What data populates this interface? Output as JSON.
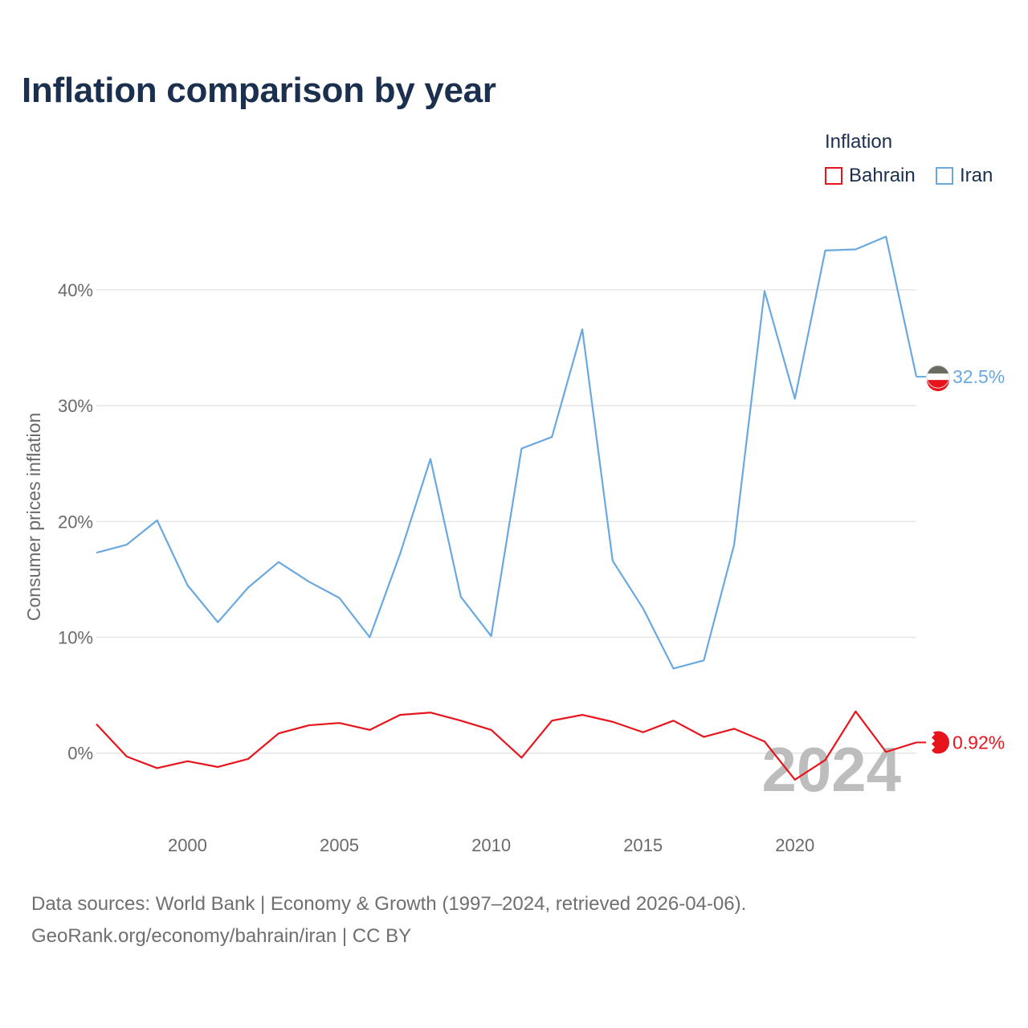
{
  "title": "Inflation comparison by year",
  "legend": {
    "title": "Inflation",
    "items": [
      {
        "name": "Bahrain",
        "color": "#e8141c"
      },
      {
        "name": "Iran",
        "color": "#6aa8e0"
      }
    ]
  },
  "chart_data": {
    "type": "line",
    "title": "Inflation comparison by year",
    "xlabel": "",
    "ylabel": "Consumer prices inflation",
    "x": [
      1997,
      1998,
      1999,
      2000,
      2001,
      2002,
      2003,
      2004,
      2005,
      2006,
      2007,
      2008,
      2009,
      2010,
      2011,
      2012,
      2013,
      2014,
      2015,
      2016,
      2017,
      2018,
      2019,
      2020,
      2021,
      2022,
      2023,
      2024
    ],
    "xlim": [
      1997,
      2024
    ],
    "ylim": [
      -5.5,
      47
    ],
    "x_ticks": [
      2000,
      2005,
      2010,
      2015,
      2020
    ],
    "x_tick_labels": [
      "2000",
      "2005",
      "2010",
      "2015",
      "2020"
    ],
    "y_ticks": [
      0,
      10,
      20,
      30,
      40
    ],
    "y_tick_labels": [
      "0%",
      "10%",
      "20%",
      "30%",
      "40%"
    ],
    "grid": true,
    "legend_position": "top-right",
    "year_watermark": "2024",
    "series": [
      {
        "name": "Bahrain",
        "color": "#e8141c",
        "end_label": "0.92%",
        "values": [
          2.5,
          -0.3,
          -1.3,
          -0.7,
          -1.2,
          -0.5,
          1.7,
          2.4,
          2.6,
          2.0,
          3.3,
          3.5,
          2.8,
          2.0,
          -0.4,
          2.8,
          3.3,
          2.7,
          1.8,
          2.8,
          1.4,
          2.1,
          1.0,
          -2.3,
          -0.6,
          3.6,
          0.1,
          0.92
        ]
      },
      {
        "name": "Iran",
        "color": "#6aa8e0",
        "end_label": "32.5%",
        "values": [
          17.3,
          18.0,
          20.1,
          14.5,
          11.3,
          14.3,
          16.5,
          14.8,
          13.4,
          10.0,
          17.2,
          25.4,
          13.5,
          10.1,
          26.3,
          27.3,
          36.6,
          16.6,
          12.5,
          7.3,
          8.0,
          18.0,
          39.9,
          30.6,
          43.4,
          43.5,
          44.6,
          32.5
        ]
      }
    ]
  },
  "footer": {
    "source": "Data sources: World Bank | Economy & Growth (1997–2024, retrieved 2026-04-06).",
    "credit": "GeoRank.org/economy/bahrain/iran | CC BY"
  }
}
